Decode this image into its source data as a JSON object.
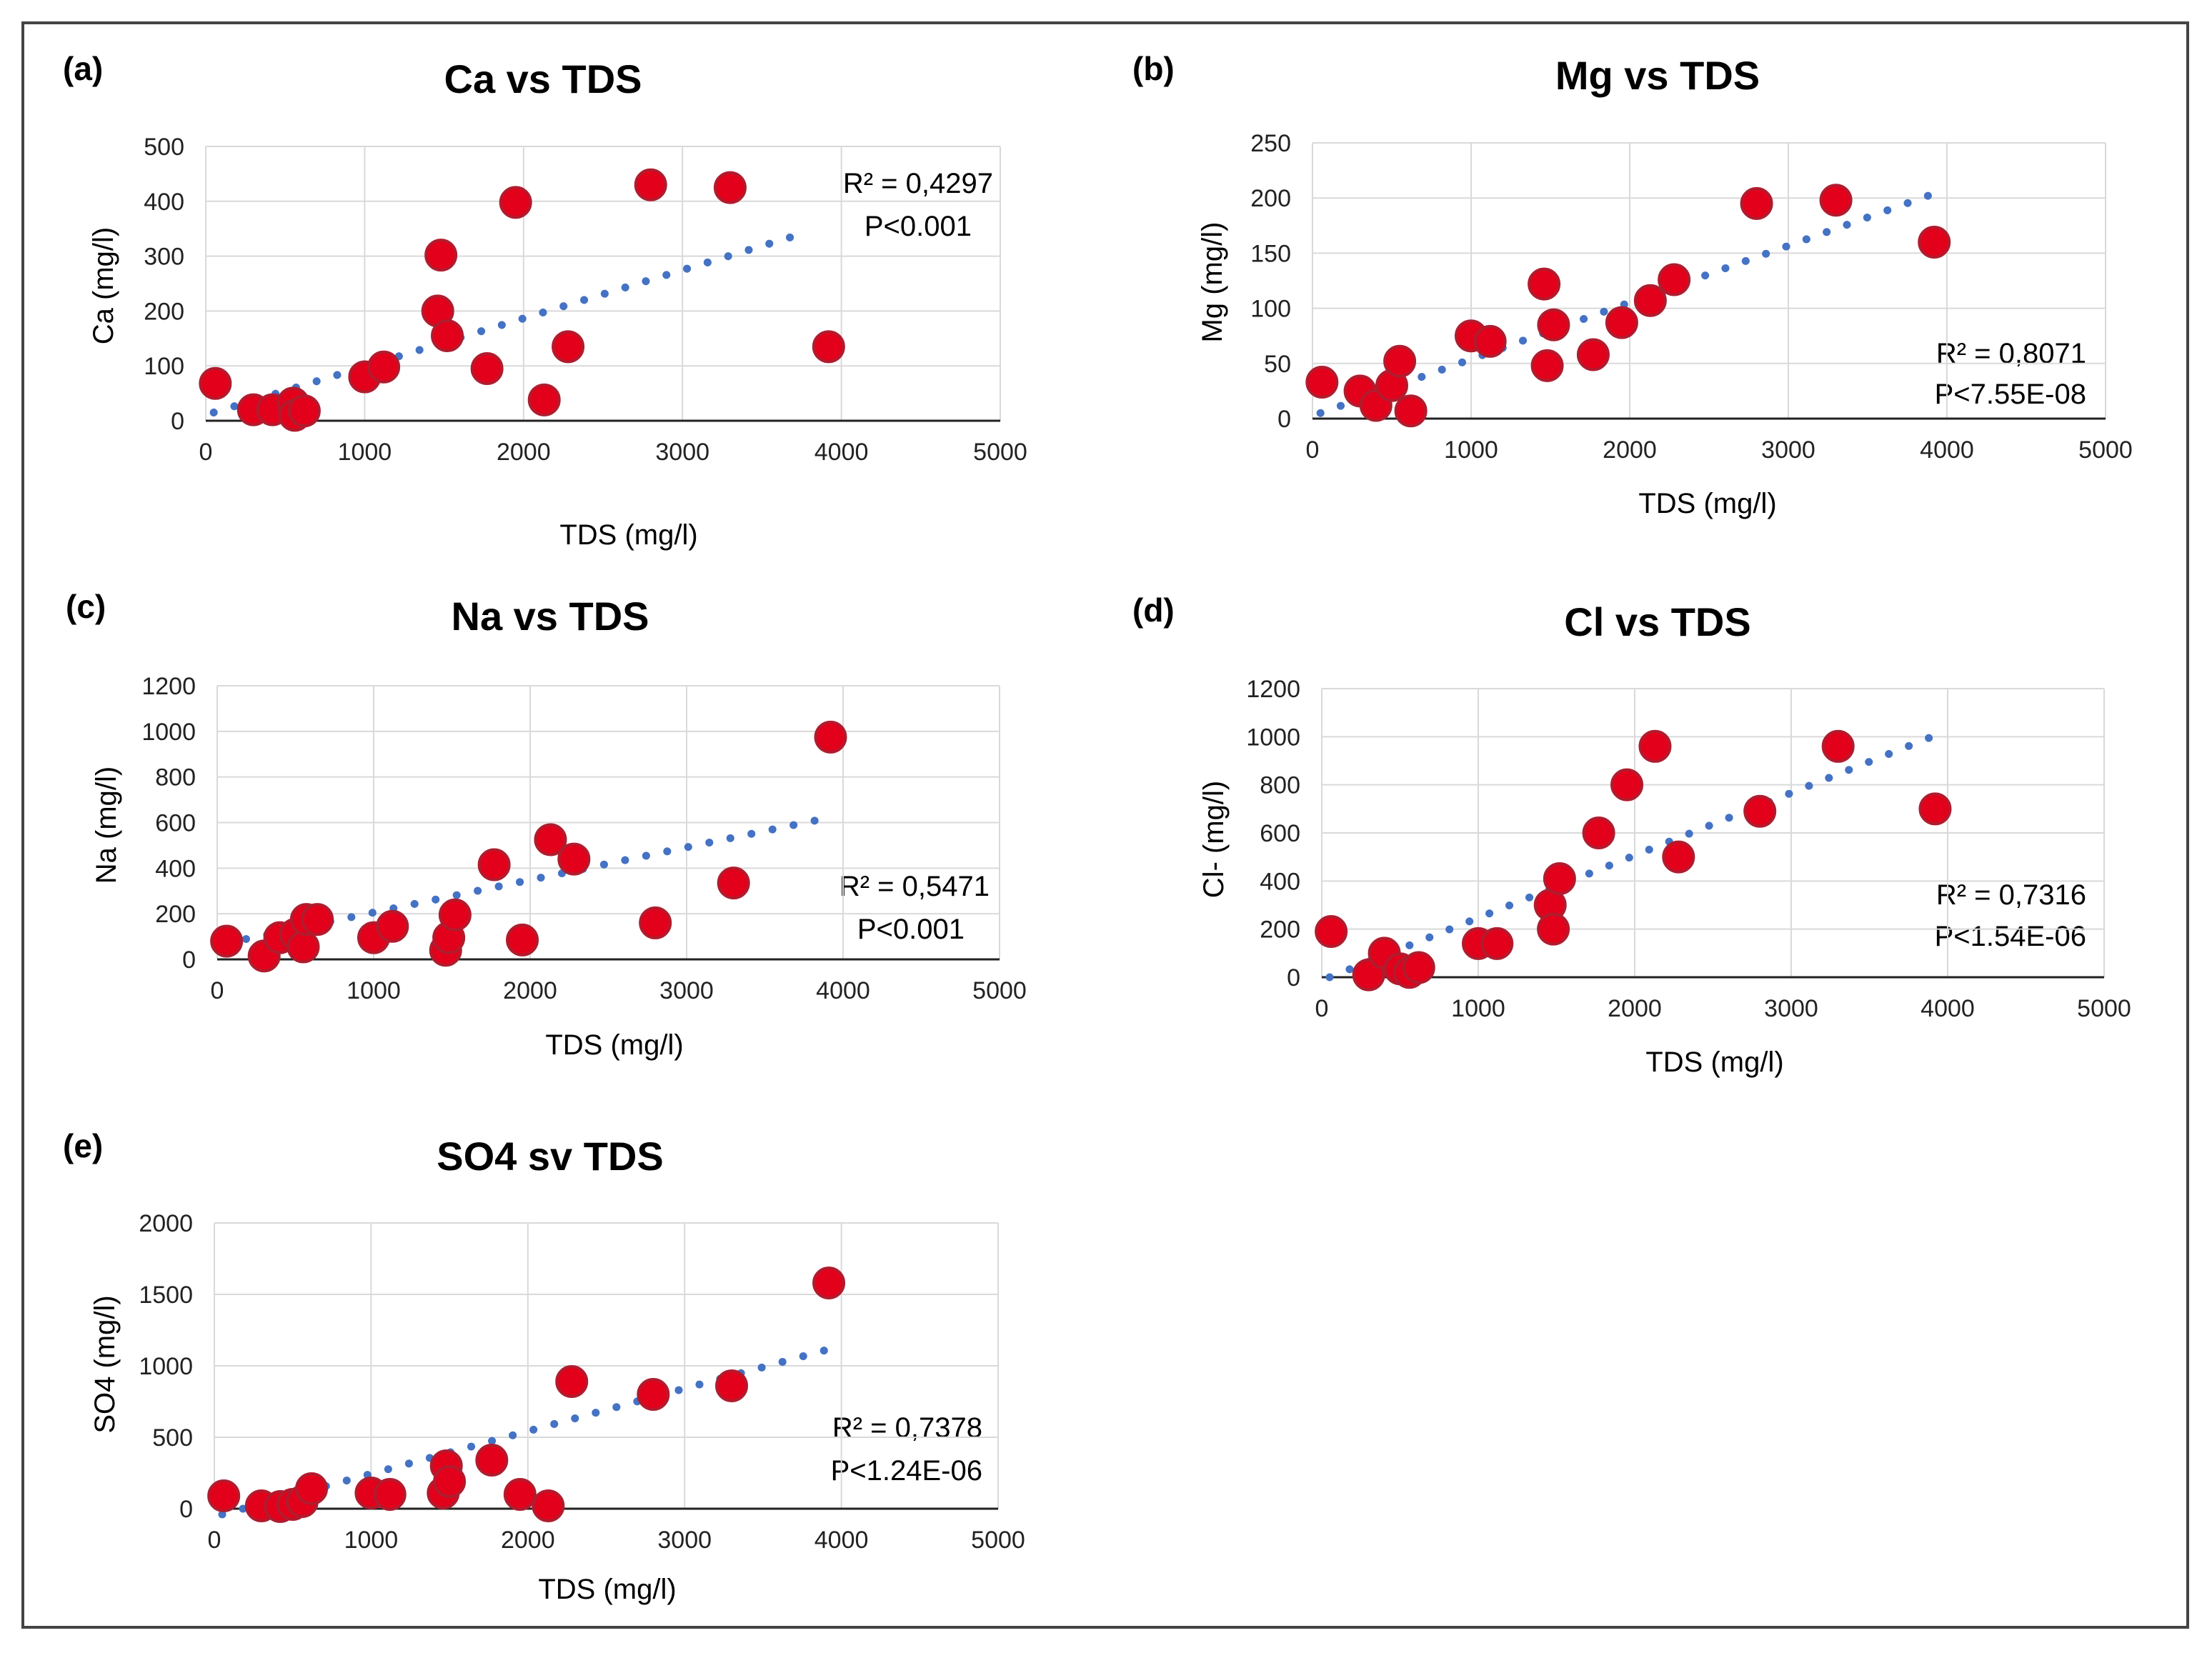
{
  "figure": {
    "border_color": "#444444",
    "marker_fill": "#e3001b",
    "marker_stroke": "#b01c2e",
    "trend_color": "#4472c4",
    "grid_color": "#d9d9d9"
  },
  "chart_data": [
    {
      "type": "scatter",
      "panel_label": "(a)",
      "title": "Ca vs TDS",
      "xlabel": "TDS (mg/l)",
      "ylabel": "Ca (mg/l)",
      "xlim": [
        0,
        5000
      ],
      "ylim": [
        0,
        500
      ],
      "x_ticks": [
        0,
        1000,
        2000,
        3000,
        4000,
        5000
      ],
      "y_ticks": [
        0,
        100,
        200,
        300,
        400,
        500
      ],
      "r2_text": "R² = 0,4297",
      "p_text": "P<0.001",
      "trend": {
        "x0": 50,
        "y0": 15,
        "x1": 3800,
        "y1": 345
      },
      "points": [
        [
          60,
          68
        ],
        [
          300,
          20
        ],
        [
          420,
          20
        ],
        [
          550,
          32
        ],
        [
          560,
          10
        ],
        [
          620,
          18
        ],
        [
          1000,
          80
        ],
        [
          1120,
          98
        ],
        [
          1460,
          200
        ],
        [
          1480,
          302
        ],
        [
          1520,
          155
        ],
        [
          1770,
          95
        ],
        [
          1950,
          398
        ],
        [
          2130,
          38
        ],
        [
          2280,
          135
        ],
        [
          2800,
          430
        ],
        [
          3300,
          425
        ],
        [
          3920,
          135
        ]
      ]
    },
    {
      "type": "scatter",
      "panel_label": "(b)",
      "title": "Mg vs TDS",
      "xlabel": "TDS (mg/l)",
      "ylabel": "Mg (mg/l)",
      "xlim": [
        0,
        5000
      ],
      "ylim": [
        0,
        250
      ],
      "x_ticks": [
        0,
        1000,
        2000,
        3000,
        4000,
        5000
      ],
      "y_ticks": [
        0,
        50,
        100,
        150,
        200,
        250
      ],
      "r2_text": "R² = 0,8071",
      "p_text": "P<7.55E-08",
      "trend": {
        "x0": 50,
        "y0": 5,
        "x1": 3900,
        "y1": 203
      },
      "points": [
        [
          60,
          33
        ],
        [
          300,
          25
        ],
        [
          400,
          12
        ],
        [
          500,
          30
        ],
        [
          550,
          52
        ],
        [
          620,
          7
        ],
        [
          1000,
          75
        ],
        [
          1120,
          70
        ],
        [
          1460,
          122
        ],
        [
          1480,
          48
        ],
        [
          1520,
          85
        ],
        [
          1770,
          58
        ],
        [
          1950,
          87
        ],
        [
          2130,
          107
        ],
        [
          2280,
          126
        ],
        [
          2800,
          195
        ],
        [
          3300,
          198
        ],
        [
          3920,
          160
        ]
      ]
    },
    {
      "type": "scatter",
      "panel_label": "(c)",
      "title": "Na vs TDS",
      "xlabel": "TDS (mg/l)",
      "ylabel": "Na (mg/l)",
      "xlim": [
        0,
        5000
      ],
      "ylim": [
        0,
        1200
      ],
      "x_ticks": [
        0,
        1000,
        2000,
        3000,
        4000,
        5000
      ],
      "y_ticks": [
        0,
        200,
        400,
        600,
        800,
        1000,
        1200
      ],
      "r2_text": "R² = 0,5471",
      "p_text": "P<0.001",
      "trend": {
        "x0": 50,
        "y0": 70,
        "x1": 3900,
        "y1": 620
      },
      "points": [
        [
          60,
          80
        ],
        [
          300,
          15
        ],
        [
          400,
          95
        ],
        [
          500,
          110
        ],
        [
          550,
          55
        ],
        [
          570,
          175
        ],
        [
          640,
          175
        ],
        [
          1000,
          95
        ],
        [
          1120,
          145
        ],
        [
          1460,
          40
        ],
        [
          1480,
          95
        ],
        [
          1520,
          195
        ],
        [
          1770,
          415
        ],
        [
          1950,
          85
        ],
        [
          2130,
          525
        ],
        [
          2280,
          440
        ],
        [
          2800,
          160
        ],
        [
          3300,
          335
        ],
        [
          3920,
          975
        ]
      ]
    },
    {
      "type": "scatter",
      "panel_label": "(d)",
      "title": "Cl vs TDS",
      "xlabel": "TDS (mg/l)",
      "ylabel": "Cl- (mg/l)",
      "xlim": [
        0,
        5000
      ],
      "ylim": [
        0,
        1200
      ],
      "x_ticks": [
        0,
        1000,
        2000,
        3000,
        4000,
        5000
      ],
      "y_ticks": [
        0,
        200,
        400,
        600,
        800,
        1000,
        1200
      ],
      "r2_text": "R² = 0,7316",
      "p_text": "P<1.54E-06",
      "trend": {
        "x0": 50,
        "y0": 0,
        "x1": 3900,
        "y1": 1000
      },
      "points": [
        [
          60,
          190
        ],
        [
          300,
          10
        ],
        [
          400,
          100
        ],
        [
          500,
          35
        ],
        [
          560,
          20
        ],
        [
          620,
          40
        ],
        [
          1000,
          140
        ],
        [
          1120,
          140
        ],
        [
          1460,
          300
        ],
        [
          1480,
          200
        ],
        [
          1520,
          410
        ],
        [
          1770,
          600
        ],
        [
          1950,
          800
        ],
        [
          2130,
          960
        ],
        [
          2280,
          500
        ],
        [
          2800,
          690
        ],
        [
          3300,
          960
        ],
        [
          3920,
          700
        ]
      ]
    },
    {
      "type": "scatter",
      "panel_label": "(e)",
      "title": "SO4 sv TDS",
      "xlabel": "TDS (mg/l)",
      "ylabel": "SO4 (mg/l)",
      "xlim": [
        0,
        5000
      ],
      "ylim": [
        0,
        2000
      ],
      "x_ticks": [
        0,
        1000,
        2000,
        3000,
        4000,
        5000
      ],
      "y_ticks": [
        0,
        500,
        1000,
        1500,
        2000
      ],
      "r2_text": "R² = 0,7378",
      "p_text": "P<1.24E-06",
      "trend": {
        "x0": 50,
        "y0": -40,
        "x1": 3900,
        "y1": 1110
      },
      "points": [
        [
          60,
          90
        ],
        [
          300,
          20
        ],
        [
          420,
          15
        ],
        [
          500,
          30
        ],
        [
          560,
          50
        ],
        [
          620,
          140
        ],
        [
          1000,
          110
        ],
        [
          1120,
          100
        ],
        [
          1460,
          110
        ],
        [
          1480,
          300
        ],
        [
          1500,
          190
        ],
        [
          1770,
          340
        ],
        [
          1950,
          100
        ],
        [
          2130,
          20
        ],
        [
          2280,
          890
        ],
        [
          2800,
          800
        ],
        [
          3300,
          860
        ],
        [
          3920,
          1580
        ]
      ]
    }
  ]
}
